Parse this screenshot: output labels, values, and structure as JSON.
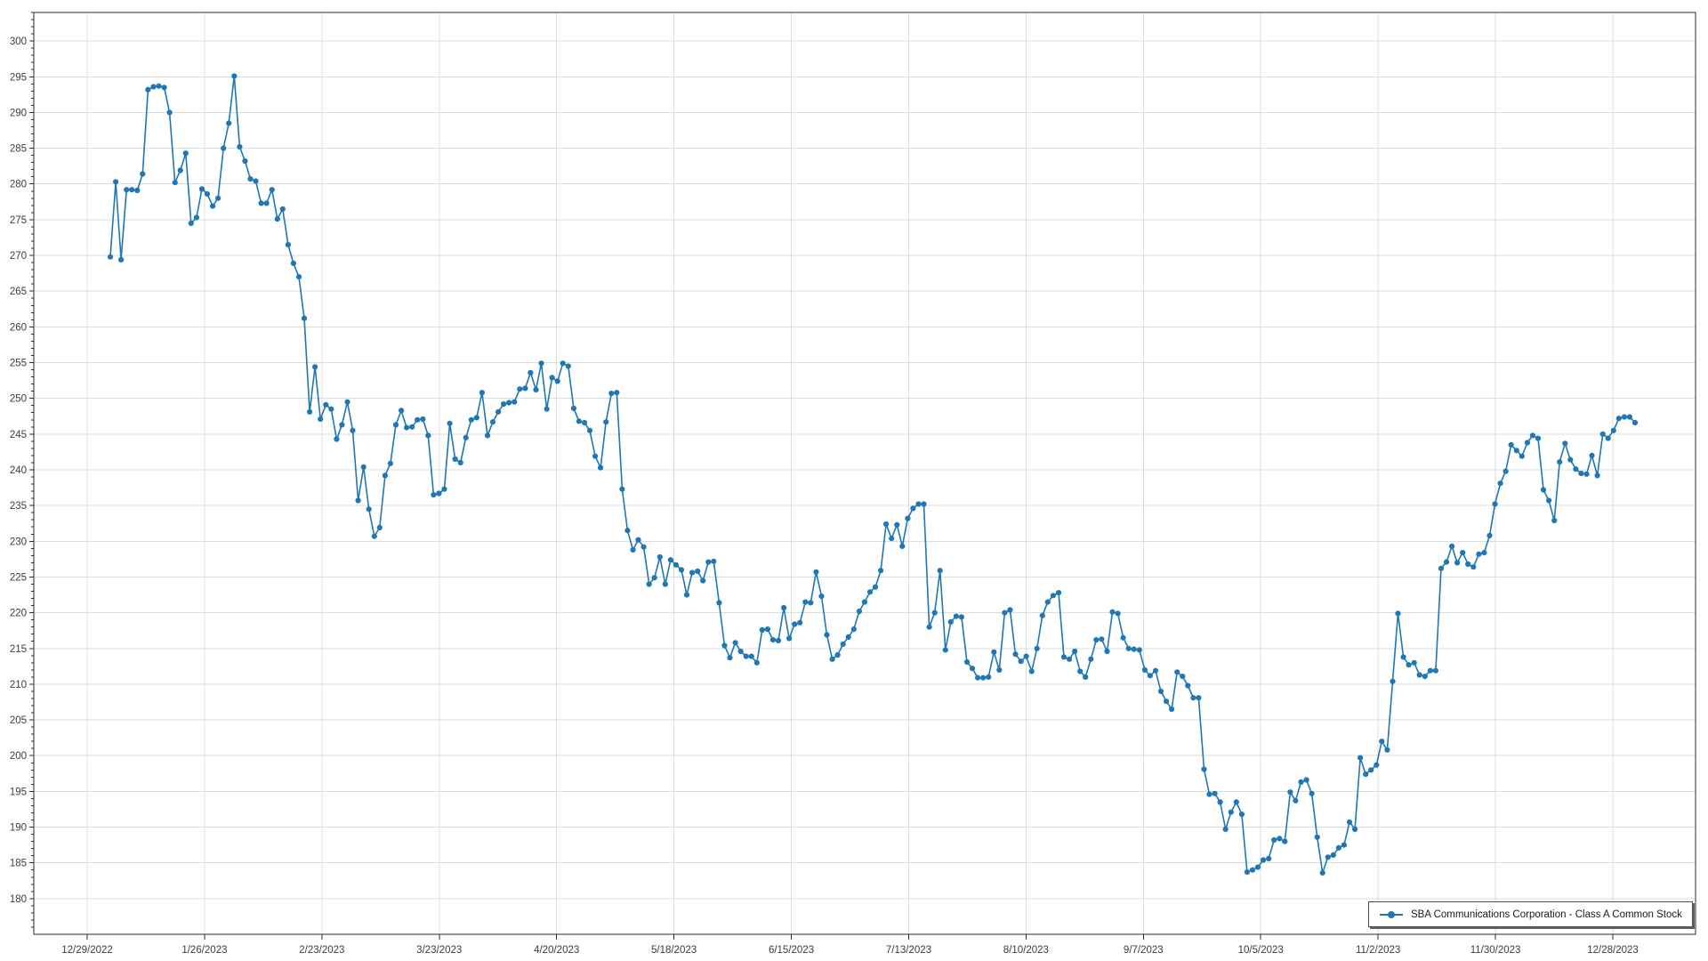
{
  "page": {
    "background": "#ffffff"
  },
  "colors": {
    "line": "#1f77b4",
    "grid": "#dcdcdc",
    "axis": "#2b2b2b",
    "tick_label": "#3c3c3c",
    "legend_border": "#4d4d4d"
  },
  "legend": {
    "label": "SBA Communications Corporation - Class A Common Stock"
  },
  "chart_data": {
    "type": "line",
    "title": "",
    "xlabel": "",
    "ylabel": "",
    "grid": true,
    "legend_position": "bottom-right",
    "ylim": [
      175,
      304
    ],
    "y_ticks": {
      "min": 180,
      "max": 300,
      "step": 5,
      "minor_step": 1
    },
    "x_tick_labels": [
      "12/29/2022",
      "1/26/2023",
      "2/23/2023",
      "3/23/2023",
      "4/20/2023",
      "5/18/2023",
      "6/15/2023",
      "7/13/2023",
      "8/10/2023",
      "9/7/2023",
      "10/5/2023",
      "11/2/2023",
      "11/30/2023",
      "12/28/2023"
    ],
    "series": [
      {
        "name": "SBA Communications Corporation - Class A Common Stock",
        "color": "#1f77b4",
        "values": [
          269.8,
          280.3,
          269.4,
          279.2,
          279.2,
          279.1,
          281.4,
          293.2,
          293.6,
          293.7,
          293.5,
          290.0,
          280.2,
          281.9,
          284.3,
          274.5,
          275.3,
          279.3,
          278.6,
          276.9,
          278.0,
          285.0,
          288.5,
          295.1,
          285.2,
          283.2,
          280.7,
          280.4,
          277.3,
          277.3,
          279.2,
          275.1,
          276.5,
          271.5,
          268.9,
          267.0,
          261.2,
          248.1,
          254.4,
          247.1,
          249.1,
          248.5,
          244.3,
          246.3,
          249.5,
          245.5,
          235.7,
          240.4,
          234.5,
          230.7,
          231.9,
          239.2,
          240.9,
          246.3,
          248.3,
          245.9,
          246.0,
          247.0,
          247.1,
          244.8,
          236.5,
          236.7,
          237.3,
          246.5,
          241.5,
          241.0,
          244.5,
          247.0,
          247.3,
          250.8,
          244.8,
          246.7,
          248.1,
          249.2,
          249.4,
          249.5,
          251.3,
          251.4,
          253.6,
          251.2,
          254.9,
          248.5,
          252.9,
          252.4,
          254.9,
          254.5,
          248.6,
          246.8,
          246.6,
          245.5,
          241.9,
          240.3,
          246.7,
          250.7,
          250.8,
          237.3,
          231.5,
          228.8,
          230.2,
          229.2,
          224.0,
          224.9,
          227.8,
          224.0,
          227.4,
          226.7,
          226.0,
          222.5,
          225.6,
          225.8,
          224.5,
          227.1,
          227.2,
          221.4,
          215.4,
          213.7,
          215.8,
          214.6,
          213.9,
          213.9,
          213.0,
          217.6,
          217.7,
          216.2,
          216.1,
          220.7,
          216.4,
          218.4,
          218.6,
          221.5,
          221.4,
          225.7,
          222.3,
          216.9,
          213.5,
          214.1,
          215.6,
          216.6,
          217.7,
          220.2,
          221.5,
          222.9,
          223.6,
          225.9,
          232.4,
          230.4,
          232.3,
          229.3,
          233.2,
          234.6,
          235.2,
          235.2,
          218.0,
          220.0,
          225.9,
          214.8,
          218.7,
          219.5,
          219.4,
          213.1,
          212.2,
          210.9,
          210.9,
          211.0,
          214.5,
          212.0,
          220.0,
          220.4,
          214.2,
          213.2,
          213.9,
          211.8,
          215.0,
          219.6,
          221.5,
          222.4,
          222.8,
          213.8,
          213.5,
          214.6,
          211.8,
          211.0,
          213.5,
          216.2,
          216.3,
          214.6,
          220.1,
          219.9,
          216.5,
          215.0,
          214.9,
          214.8,
          212.0,
          211.2,
          211.9,
          209.0,
          207.6,
          206.5,
          211.7,
          211.1,
          209.8,
          208.1,
          208.1,
          198.1,
          194.6,
          194.7,
          193.5,
          189.7,
          192.1,
          193.5,
          191.8,
          183.7,
          184.0,
          184.4,
          185.4,
          185.6,
          188.2,
          188.4,
          188.0,
          194.9,
          193.7,
          196.3,
          196.6,
          194.7,
          188.6,
          183.6,
          185.8,
          186.1,
          187.1,
          187.5,
          190.7,
          189.7,
          199.7,
          197.4,
          198.0,
          198.7,
          202.0,
          200.8,
          210.4,
          219.9,
          213.8,
          212.7,
          213.0,
          211.3,
          211.1,
          211.9,
          211.9,
          226.2,
          227.1,
          229.3,
          227.0,
          228.4,
          226.8,
          226.4,
          228.2,
          228.4,
          230.8,
          235.2,
          238.1,
          239.8,
          243.5,
          242.7,
          241.9,
          243.8,
          244.8,
          244.4,
          237.2,
          235.7,
          232.9,
          241.1,
          243.7,
          241.4,
          240.1,
          239.5,
          239.4,
          242.0,
          239.2,
          245.0,
          244.4,
          245.5,
          247.2,
          247.4,
          247.4,
          246.6
        ]
      }
    ]
  }
}
